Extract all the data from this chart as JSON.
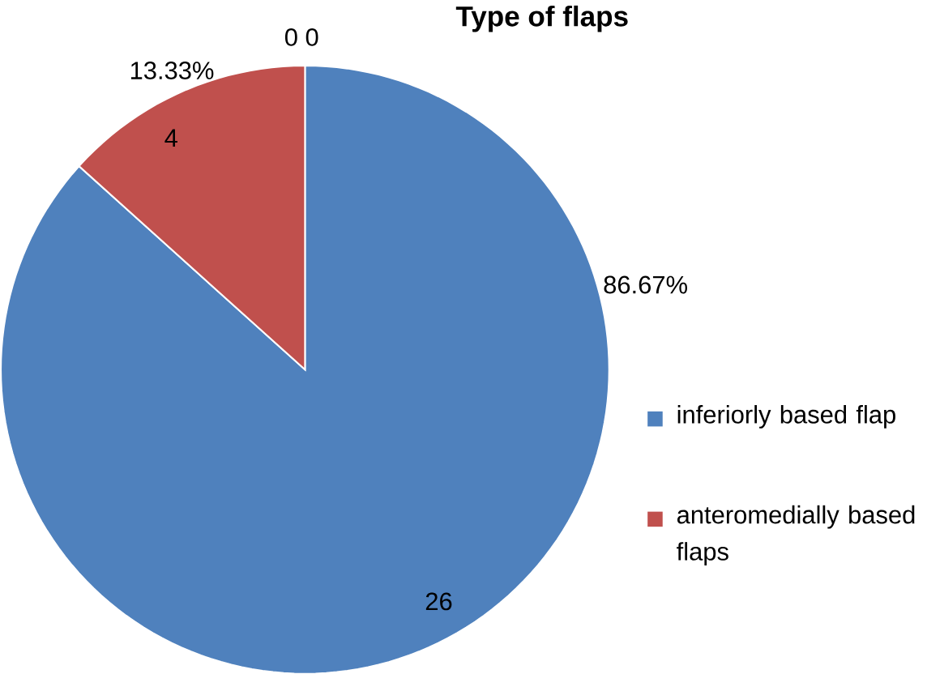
{
  "chart_data": {
    "type": "pie",
    "title": "Type of flaps",
    "categories": [
      "inferiorly based flap",
      "anteromedially based flaps"
    ],
    "values": [
      86.67,
      13.33
    ],
    "colors": [
      "#4f81bd",
      "#c0504d"
    ],
    "value_labels": [
      "86.67%",
      "13.33%"
    ],
    "legend": "right",
    "annotations": [
      "0 0",
      {
        "text": "26",
        "x": "inferiorly based flap"
      },
      {
        "text": "4",
        "x": "anteromedially based flaps"
      }
    ]
  }
}
